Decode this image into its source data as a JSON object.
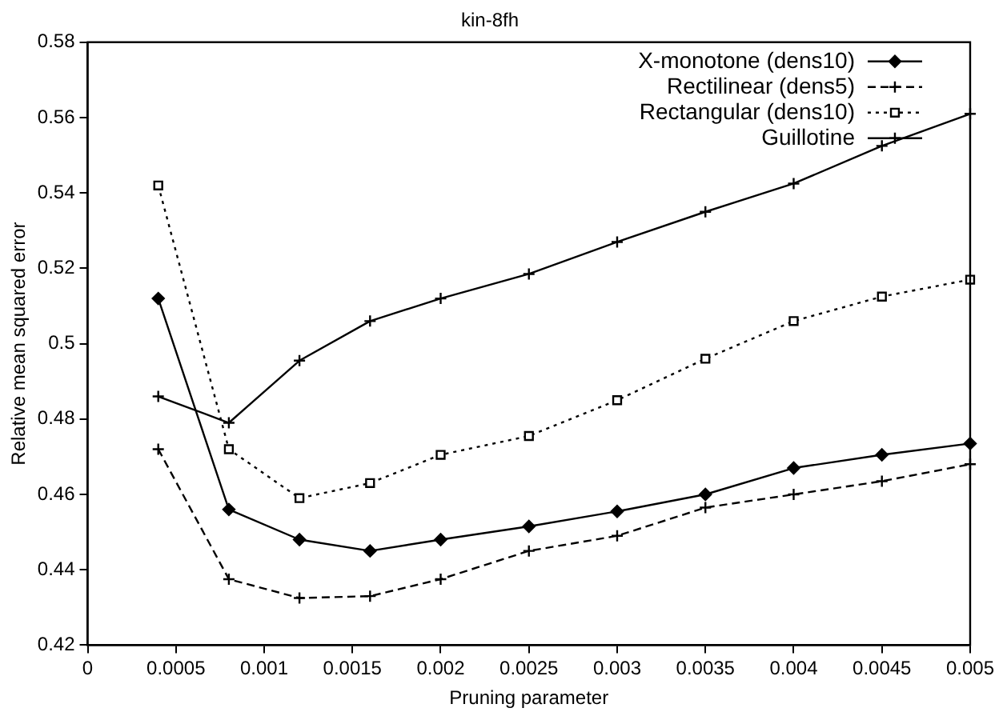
{
  "chart_data": {
    "type": "line",
    "title": "kin-8fh",
    "xlabel": "Pruning parameter",
    "ylabel": "Relative mean squared error",
    "x": [
      0.0004,
      0.0008,
      0.0012,
      0.0016,
      0.002,
      0.0025,
      0.003,
      0.0035,
      0.004,
      0.0045,
      0.005
    ],
    "series": [
      {
        "name": "X-monotone (dens10)",
        "color": "#000000",
        "marker": "diamond",
        "line_style": "solid",
        "values": [
          0.512,
          0.456,
          0.448,
          0.445,
          0.448,
          0.4515,
          0.4555,
          0.46,
          0.467,
          0.4705,
          0.4735
        ]
      },
      {
        "name": "Rectilinear (dens5)",
        "color": "#000000",
        "marker": "cross",
        "line_style": "dashed",
        "values": [
          0.472,
          0.4375,
          0.4325,
          0.433,
          0.4375,
          0.445,
          0.449,
          0.4565,
          0.46,
          0.4635,
          0.468
        ]
      },
      {
        "name": "Rectangular (dens10)",
        "color": "#000000",
        "marker": "square",
        "line_style": "dotted",
        "values": [
          0.542,
          0.472,
          0.459,
          0.463,
          0.4705,
          0.4755,
          0.485,
          0.496,
          0.506,
          0.5125,
          0.517
        ]
      },
      {
        "name": "Guillotine",
        "color": "#000000",
        "marker": "cross",
        "line_style": "solid",
        "values": [
          0.486,
          0.479,
          0.4955,
          0.506,
          0.512,
          0.5185,
          0.527,
          0.535,
          0.5425,
          0.5525,
          0.561
        ]
      }
    ],
    "xlim": [
      0,
      0.005
    ],
    "xticks": [
      0,
      0.0005,
      0.001,
      0.0015,
      0.002,
      0.0025,
      0.003,
      0.0035,
      0.004,
      0.0045,
      0.005
    ],
    "ylim": [
      0.42,
      0.58
    ],
    "yticks": [
      0.42,
      0.44,
      0.46,
      0.48,
      0.5,
      0.52,
      0.54,
      0.56,
      0.58
    ],
    "grid": false,
    "legend": "top right"
  }
}
